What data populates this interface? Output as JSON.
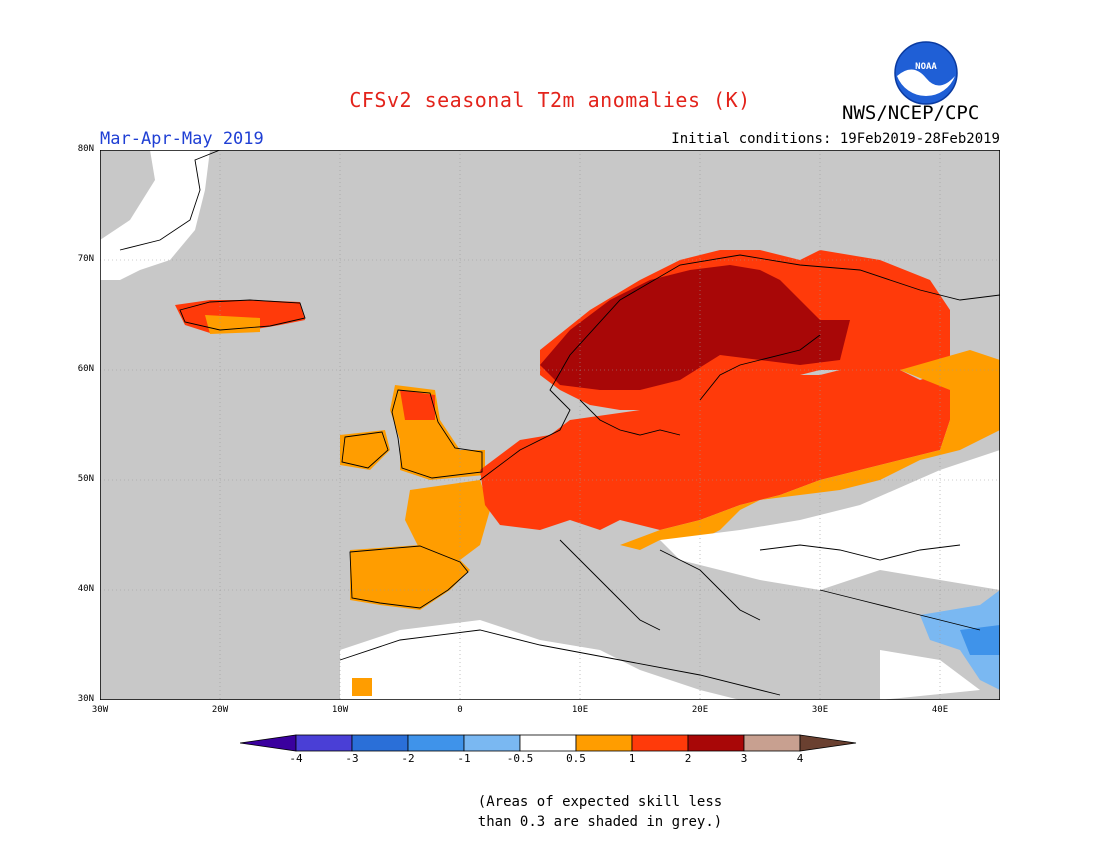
{
  "title": "CFSv2 seasonal T2m anomalies (K)",
  "org": "NWS/NCEP/CPC",
  "logo_text": "NOAA",
  "season": "Mar-Apr-May 2019",
  "initial_conditions": "Initial conditions: 19Feb2019-28Feb2019",
  "lat_labels": [
    "80N",
    "70N",
    "60N",
    "50N",
    "40N",
    "30N"
  ],
  "lon_labels": [
    "30W",
    "20W",
    "10W",
    "0",
    "10E",
    "20E",
    "30E",
    "40E"
  ],
  "colorbar": {
    "labels": [
      "-4",
      "-3",
      "-2",
      "-1",
      "-0.5",
      "0.5",
      "1",
      "2",
      "3",
      "4"
    ],
    "colors": [
      "#3a009e",
      "#4a3fd6",
      "#2a6fd8",
      "#3f93ea",
      "#7ab8f2",
      "#ffffff",
      "#ff9d00",
      "#ff3a0a",
      "#a80707",
      "#c8a090",
      "#6a4030"
    ]
  },
  "note_line1": "(Areas of expected skill less",
  "note_line2": "than 0.3 are shaded in grey.)",
  "map_colors": {
    "grey": "#c8c8c8",
    "ocean_grey": "#c8c8c8",
    "white": "#ffffff",
    "orange": "#ff9d00",
    "red": "#ff3a0a",
    "darkred": "#a80707",
    "lightblue": "#7ab8f2",
    "blue": "#3f93ea"
  }
}
